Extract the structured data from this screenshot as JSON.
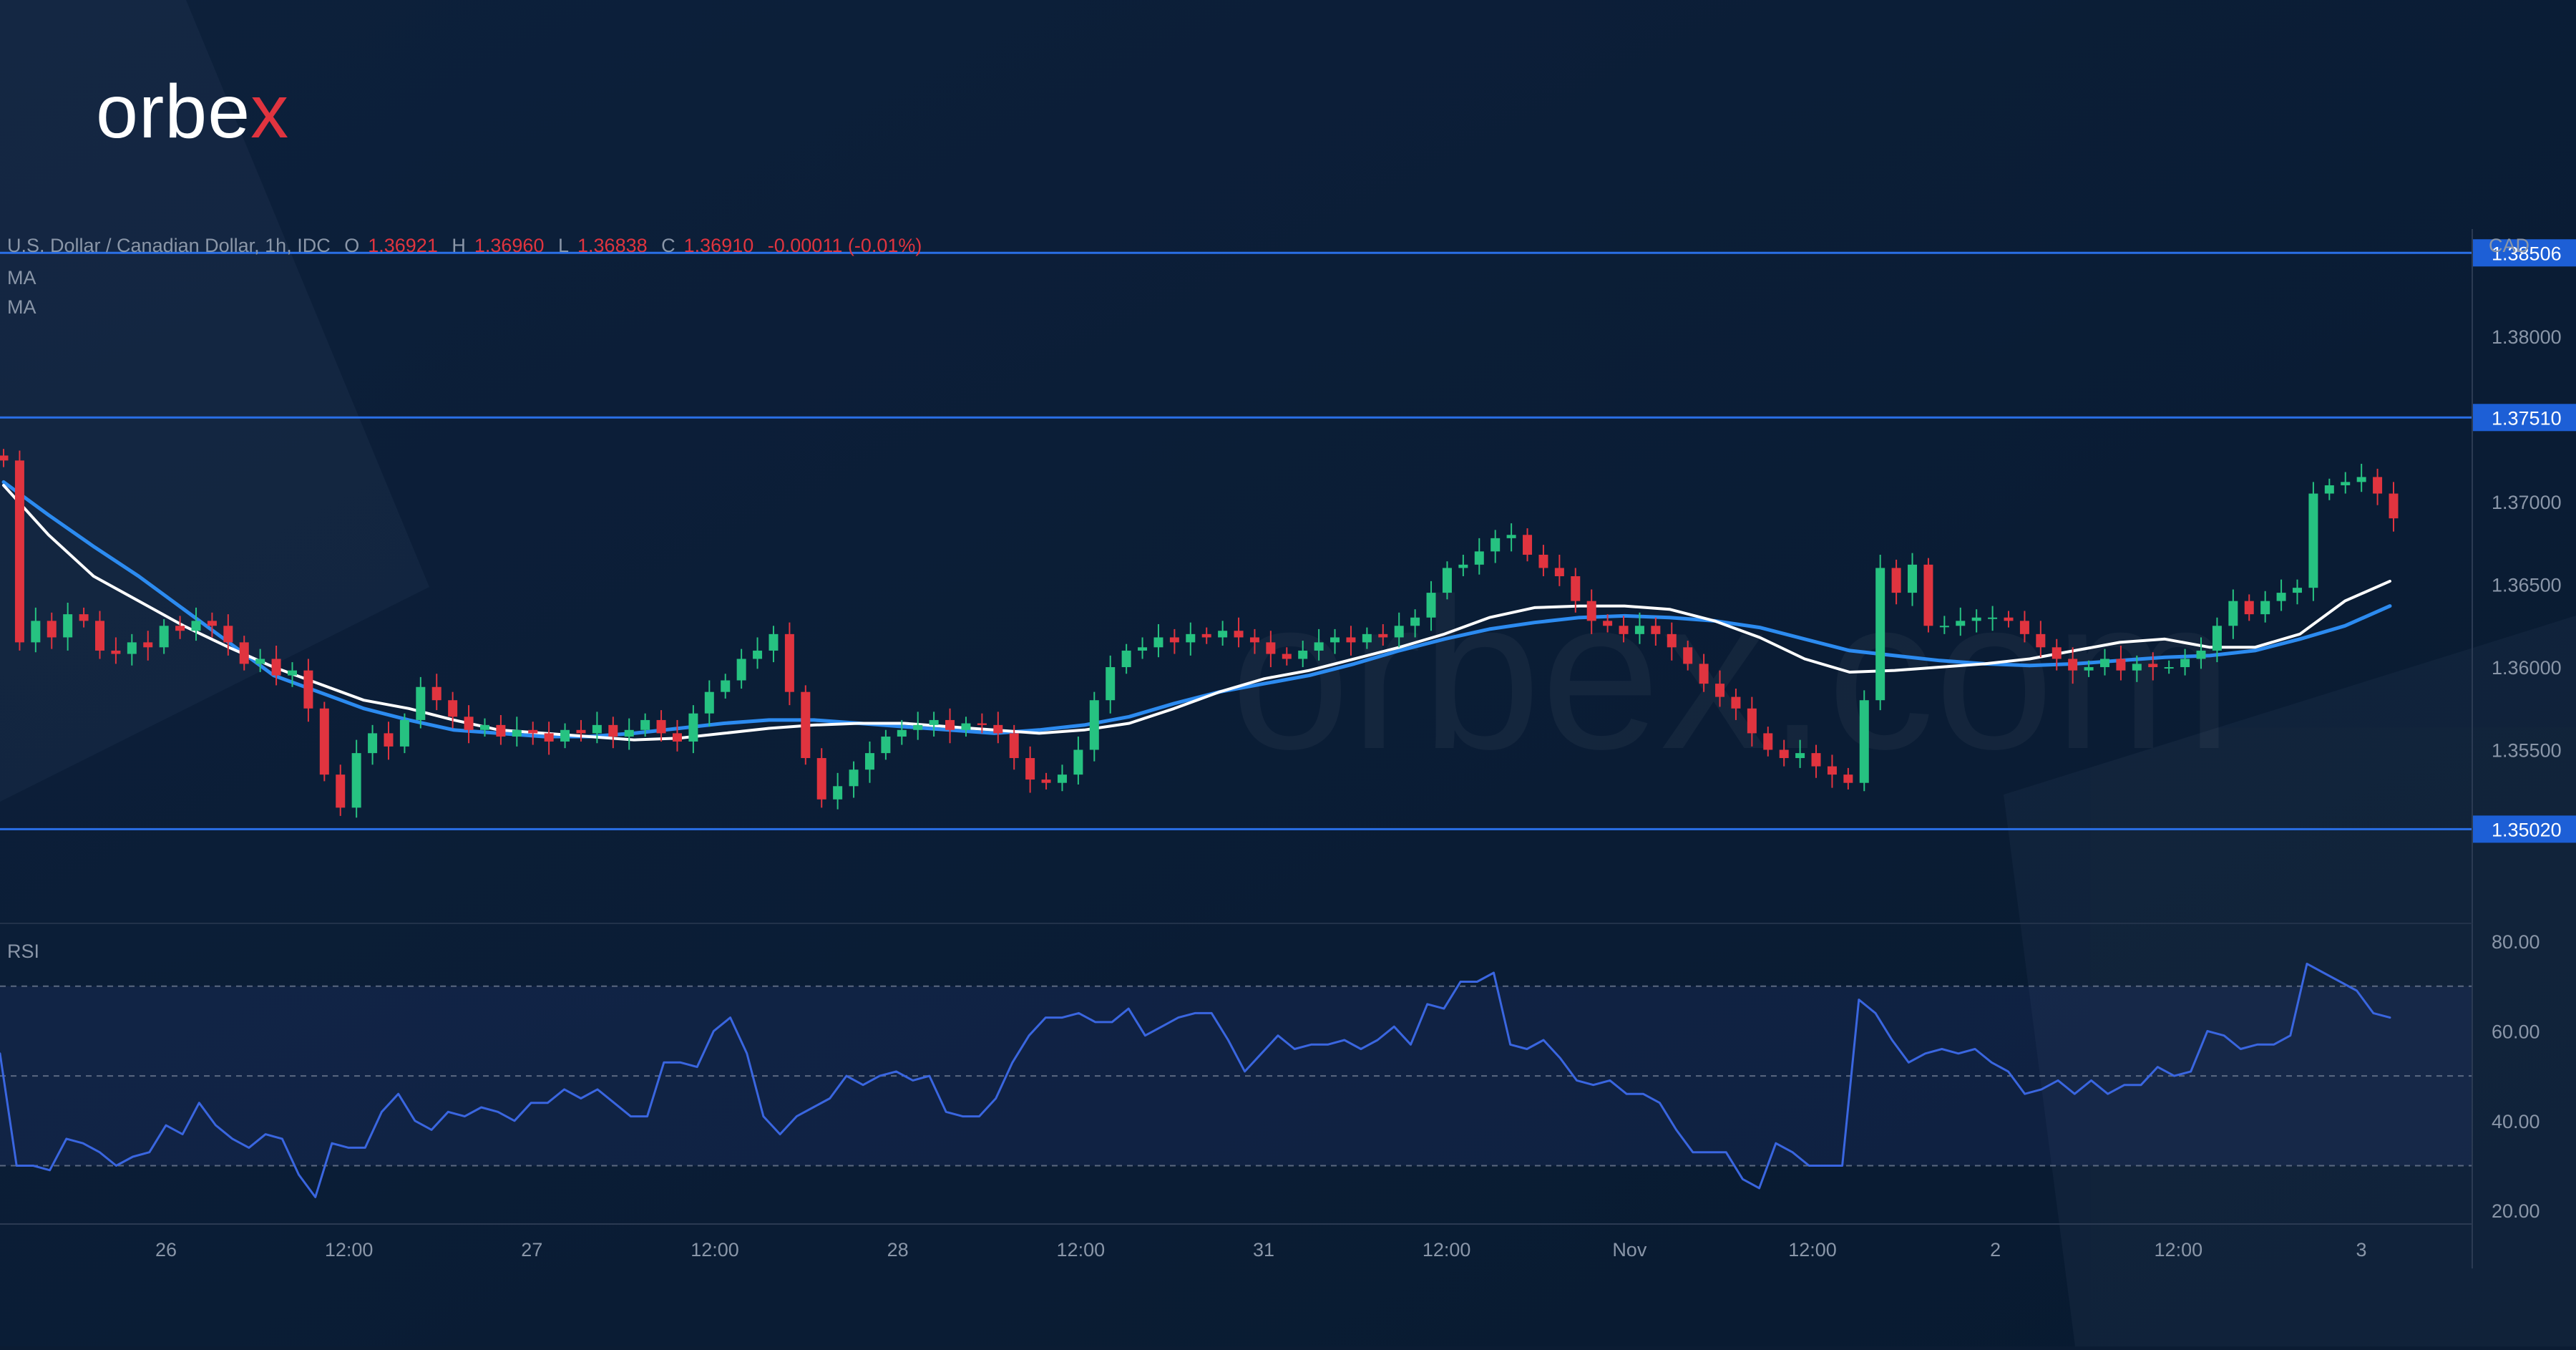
{
  "brand": {
    "logo_text": "orbe",
    "logo_accent": "x",
    "watermark": "orbex.com"
  },
  "legend": {
    "symbol": "U.S. Dollar / Canadian Dollar, 1h, IDC",
    "o_label": "O",
    "o_val": "1.36921",
    "h_label": "H",
    "h_val": "1.36960",
    "l_label": "L",
    "l_val": "1.36838",
    "c_label": "C",
    "c_val": "1.36910",
    "change": "-0.00011 (-0.01%)",
    "ma1": "MA",
    "ma2": "MA"
  },
  "colors": {
    "background": "#0b1c33",
    "up": "#26c281",
    "down": "#e0343f",
    "level": "#2a6fe6",
    "ma_fast": "#ffffff",
    "ma_slow": "#2c8bf0",
    "rsi": "#3a66e0"
  },
  "chart_data": [
    {
      "type": "candlestick",
      "title": "U.S. Dollar / Canadian Dollar, 1h, IDC",
      "ylabel": "CAD",
      "ylim": [
        1.3445,
        1.3865
      ],
      "y_ticks": [
        "1.38000",
        "1.37000",
        "1.36500",
        "1.36000",
        "1.35500"
      ],
      "x_ticks": [
        "26",
        "12:00",
        "27",
        "12:00",
        "28",
        "12:00",
        "31",
        "12:00",
        "Nov",
        "12:00",
        "2",
        "12:00",
        "3"
      ],
      "levels": [
        {
          "value": 1.38506,
          "label": "1.38506"
        },
        {
          "value": 1.3751,
          "label": "1.37510"
        },
        {
          "value": 1.3502,
          "label": "1.35020"
        }
      ],
      "close_path": [
        1.3725,
        1.3615,
        1.3628,
        1.3618,
        1.3632,
        1.3628,
        1.361,
        1.3608,
        1.3615,
        1.3612,
        1.3625,
        1.3622,
        1.3628,
        1.3625,
        1.3615,
        1.3602,
        1.3605,
        1.3595,
        1.3598,
        1.3575,
        1.3535,
        1.3515,
        1.3548,
        1.356,
        1.3552,
        1.3568,
        1.3588,
        1.358,
        1.357,
        1.3562,
        1.3565,
        1.3558,
        1.3562,
        1.356,
        1.3555,
        1.3562,
        1.356,
        1.3565,
        1.3558,
        1.3562,
        1.3568,
        1.356,
        1.3555,
        1.3572,
        1.3585,
        1.3592,
        1.3605,
        1.361,
        1.362,
        1.3585,
        1.3545,
        1.352,
        1.3528,
        1.3538,
        1.3548,
        1.3558,
        1.3562,
        1.3565,
        1.3568,
        1.3562,
        1.3566,
        1.3565,
        1.356,
        1.3545,
        1.3532,
        1.353,
        1.3535,
        1.355,
        1.358,
        1.36,
        1.361,
        1.3612,
        1.3618,
        1.3615,
        1.362,
        1.3618,
        1.3622,
        1.3618,
        1.3615,
        1.3608,
        1.3605,
        1.361,
        1.3615,
        1.3618,
        1.3615,
        1.362,
        1.3618,
        1.3625,
        1.363,
        1.3645,
        1.366,
        1.3662,
        1.367,
        1.3678,
        1.368,
        1.3668,
        1.366,
        1.3655,
        1.364,
        1.3628,
        1.3625,
        1.362,
        1.3625,
        1.362,
        1.3612,
        1.3602,
        1.359,
        1.3582,
        1.3575,
        1.356,
        1.355,
        1.3545,
        1.3548,
        1.354,
        1.3535,
        1.353,
        1.358,
        1.366,
        1.3645,
        1.3662,
        1.3625,
        1.3625,
        1.3628,
        1.363,
        1.363,
        1.3628,
        1.362,
        1.3612,
        1.3605,
        1.3598,
        1.36,
        1.3605,
        1.3598,
        1.3602,
        1.36,
        1.36,
        1.3605,
        1.361,
        1.3625,
        1.364,
        1.3632,
        1.364,
        1.3645,
        1.3648,
        1.3705,
        1.371,
        1.3712,
        1.3715,
        1.3705,
        1.369
      ],
      "ma_fast": [
        1.371,
        1.368,
        1.3655,
        1.364,
        1.3625,
        1.3612,
        1.36,
        1.359,
        1.358,
        1.3575,
        1.3568,
        1.3562,
        1.356,
        1.3558,
        1.3556,
        1.3557,
        1.356,
        1.3563,
        1.3565,
        1.3566,
        1.3566,
        1.3564,
        1.3562,
        1.356,
        1.3562,
        1.3566,
        1.3575,
        1.3585,
        1.3593,
        1.3598,
        1.3605,
        1.3612,
        1.362,
        1.363,
        1.3636,
        1.3637,
        1.3637,
        1.3635,
        1.3628,
        1.3618,
        1.3605,
        1.3597,
        1.3598,
        1.36,
        1.3602,
        1.3605,
        1.361,
        1.3615,
        1.3617,
        1.3612,
        1.3612,
        1.362,
        1.364,
        1.3652
      ],
      "ma_slow": [
        1.3712,
        1.3692,
        1.3673,
        1.3655,
        1.3635,
        1.3615,
        1.3595,
        1.3585,
        1.3575,
        1.3568,
        1.3562,
        1.356,
        1.3558,
        1.3558,
        1.356,
        1.3563,
        1.3566,
        1.3568,
        1.3568,
        1.3566,
        1.3564,
        1.3562,
        1.356,
        1.3562,
        1.3565,
        1.357,
        1.3578,
        1.3585,
        1.359,
        1.3595,
        1.3602,
        1.361,
        1.3617,
        1.3623,
        1.3627,
        1.363,
        1.3631,
        1.363,
        1.3628,
        1.3624,
        1.3617,
        1.361,
        1.3607,
        1.3604,
        1.3602,
        1.3601,
        1.3602,
        1.3604,
        1.3606,
        1.3607,
        1.361,
        1.3617,
        1.3625,
        1.3637
      ]
    },
    {
      "type": "line",
      "title": "RSI",
      "ylim": [
        17,
        84
      ],
      "y_ticks": [
        "80.00",
        "60.00",
        "40.00",
        "20.00"
      ],
      "bands": [
        70,
        50,
        30
      ],
      "values": [
        55,
        30,
        30,
        29,
        36,
        35,
        33,
        30,
        32,
        33,
        39,
        37,
        44,
        39,
        36,
        34,
        37,
        36,
        28,
        23,
        35,
        34,
        34,
        42,
        46,
        40,
        38,
        42,
        41,
        43,
        42,
        40,
        44,
        44,
        47,
        45,
        47,
        44,
        41,
        41,
        53,
        53,
        52,
        60,
        63,
        55,
        41,
        37,
        41,
        43,
        45,
        50,
        48,
        50,
        51,
        49,
        50,
        42,
        41,
        41,
        45,
        53,
        59,
        63,
        63,
        64,
        62,
        62,
        65,
        59,
        61,
        63,
        64,
        64,
        58,
        51,
        55,
        59,
        56,
        57,
        57,
        58,
        56,
        58,
        61,
        57,
        66,
        65,
        71,
        71,
        73,
        57,
        56,
        58,
        54,
        49,
        48,
        49,
        46,
        46,
        44,
        38,
        33,
        33,
        33,
        27,
        25,
        35,
        33,
        30,
        30,
        30,
        67,
        64,
        58,
        53,
        55,
        56,
        55,
        56,
        53,
        51,
        46,
        47,
        49,
        46,
        49,
        46,
        48,
        48,
        52,
        50,
        51,
        60,
        59,
        56,
        57,
        57,
        59,
        75,
        73,
        71,
        69,
        64,
        63
      ]
    }
  ]
}
